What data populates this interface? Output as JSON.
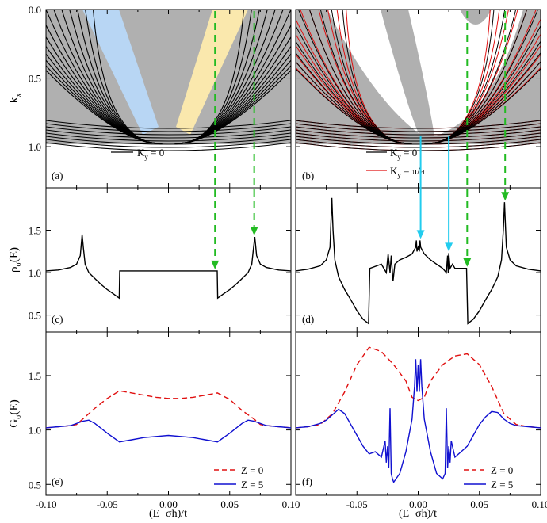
{
  "chart_data": [
    {
      "panel": "a",
      "type": "line",
      "panel_label": "(a)",
      "ylabel": "k",
      "ylabel_sub": "x",
      "ylim": [
        1.3,
        0.0
      ],
      "yticks": [
        "0.0",
        "0.5",
        "1.0"
      ],
      "xlim": [
        -0.1,
        0.1
      ],
      "shaded_regions": [
        {
          "color": "#b0b0b0",
          "meaning": "continuum"
        },
        {
          "color": "#b8d6f4",
          "x": [
            -0.07,
            -0.04
          ]
        },
        {
          "color": "#fae8ad",
          "x": [
            0.04,
            0.07
          ]
        }
      ],
      "series": [
        {
          "legend": "K",
          "legend_sub": "y",
          "legend_tail": " = 0",
          "color": "#000000"
        }
      ]
    },
    {
      "panel": "b",
      "type": "line",
      "panel_label": "(b)",
      "ylim": [
        1.3,
        0.0
      ],
      "xlim": [
        -0.1,
        0.1
      ],
      "series": [
        {
          "legend": "K",
          "legend_sub": "y",
          "legend_tail": " = 0",
          "color": "#000000"
        },
        {
          "legend": "K",
          "legend_sub": "y",
          "legend_tail": " = π/a",
          "color": "#e01010"
        }
      ]
    },
    {
      "panel": "c",
      "type": "line",
      "panel_label": "(c)",
      "ylabel": "ρ",
      "ylabel_sub": "σ",
      "ylabel_tail": "(E)",
      "ylim": [
        0.3,
        2.0
      ],
      "yticks": [
        "0.5",
        "1.0",
        "1.5"
      ],
      "xlim": [
        -0.1,
        0.1
      ],
      "x": [
        -0.1,
        -0.09,
        -0.08,
        -0.075,
        -0.072,
        -0.0705,
        -0.0695,
        -0.068,
        -0.065,
        -0.06,
        -0.055,
        -0.05,
        -0.045,
        -0.0402,
        -0.0398,
        -0.02,
        0.0,
        0.02,
        0.0398,
        0.0402,
        0.045,
        0.05,
        0.055,
        0.06,
        0.065,
        0.068,
        0.0695,
        0.0705,
        0.072,
        0.075,
        0.08,
        0.09,
        0.1
      ],
      "values": [
        1.02,
        1.03,
        1.06,
        1.1,
        1.2,
        1.45,
        1.3,
        1.1,
        1.0,
        0.93,
        0.86,
        0.8,
        0.75,
        0.7,
        1.02,
        1.02,
        1.02,
        1.02,
        1.02,
        0.7,
        0.75,
        0.8,
        0.86,
        0.93,
        1.0,
        1.1,
        1.3,
        1.42,
        1.2,
        1.1,
        1.06,
        1.03,
        1.02
      ],
      "color": "#000000"
    },
    {
      "panel": "d",
      "type": "line",
      "panel_label": "(d)",
      "ylim": [
        0.3,
        2.0
      ],
      "xlim": [
        -0.1,
        0.1
      ],
      "x": [
        -0.1,
        -0.09,
        -0.08,
        -0.075,
        -0.072,
        -0.0705,
        -0.0695,
        -0.068,
        -0.065,
        -0.06,
        -0.055,
        -0.05,
        -0.045,
        -0.0405,
        -0.0395,
        -0.03,
        -0.026,
        -0.0245,
        -0.023,
        -0.022,
        -0.0205,
        -0.019,
        -0.015,
        -0.01,
        -0.005,
        -0.002,
        -0.0015,
        -0.001,
        0.0,
        0.001,
        0.0015,
        0.002,
        0.005,
        0.01,
        0.015,
        0.02,
        0.023,
        0.024,
        0.0245,
        0.025,
        0.026,
        0.028,
        0.03,
        0.035,
        0.0395,
        0.0405,
        0.045,
        0.05,
        0.055,
        0.06,
        0.065,
        0.068,
        0.0695,
        0.0705,
        0.072,
        0.075,
        0.08,
        0.09,
        0.1
      ],
      "values": [
        1.02,
        1.04,
        1.08,
        1.15,
        1.3,
        1.88,
        1.5,
        1.15,
        0.95,
        0.8,
        0.68,
        0.55,
        0.45,
        0.4,
        1.05,
        1.1,
        1.0,
        1.22,
        1.0,
        1.2,
        0.9,
        1.1,
        1.15,
        1.18,
        1.22,
        1.3,
        1.38,
        1.25,
        1.3,
        1.25,
        1.38,
        1.3,
        1.22,
        1.15,
        1.1,
        1.05,
        1.0,
        1.2,
        1.0,
        1.23,
        1.05,
        1.1,
        1.05,
        1.05,
        1.05,
        0.4,
        0.45,
        0.55,
        0.68,
        0.8,
        0.95,
        1.15,
        1.5,
        1.83,
        1.3,
        1.15,
        1.08,
        1.04,
        1.02
      ],
      "color": "#000000"
    },
    {
      "panel": "e",
      "type": "line",
      "panel_label": "(e)",
      "ylabel": "G",
      "ylabel_sub": "σ",
      "ylabel_tail": "(E)",
      "ylim": [
        0.4,
        1.9
      ],
      "yticks": [
        "0.5",
        "1.0",
        "1.5"
      ],
      "xlim": [
        -0.1,
        0.1
      ],
      "xticks": [
        "-0.10",
        "-0.05",
        "0.00",
        "0.05",
        "0.10"
      ],
      "xlabel": "(E−σh)/t",
      "series": [
        {
          "name": "Z = 0",
          "color": "#e01010",
          "dash": true,
          "x": [
            -0.1,
            -0.09,
            -0.08,
            -0.075,
            -0.07,
            -0.06,
            -0.05,
            -0.04,
            -0.03,
            -0.02,
            -0.01,
            0.0,
            0.01,
            0.02,
            0.03,
            0.04,
            0.05,
            0.06,
            0.07,
            0.075,
            0.08,
            0.09,
            0.1
          ],
          "values": [
            1.02,
            1.03,
            1.04,
            1.05,
            1.1,
            1.2,
            1.29,
            1.36,
            1.34,
            1.32,
            1.3,
            1.29,
            1.29,
            1.3,
            1.32,
            1.34,
            1.28,
            1.18,
            1.1,
            1.05,
            1.04,
            1.03,
            1.02
          ]
        },
        {
          "name": "Z = 5",
          "color": "#1010d0",
          "dash": false,
          "x": [
            -0.1,
            -0.09,
            -0.08,
            -0.075,
            -0.07,
            -0.065,
            -0.06,
            -0.05,
            -0.04,
            -0.03,
            -0.02,
            -0.01,
            0.0,
            0.01,
            0.02,
            0.03,
            0.04,
            0.05,
            0.06,
            0.065,
            0.07,
            0.075,
            0.08,
            0.09,
            0.1
          ],
          "values": [
            1.02,
            1.03,
            1.04,
            1.06,
            1.08,
            1.09,
            1.06,
            0.97,
            0.89,
            0.91,
            0.93,
            0.94,
            0.95,
            0.94,
            0.93,
            0.91,
            0.89,
            0.97,
            1.06,
            1.09,
            1.08,
            1.06,
            1.04,
            1.03,
            1.02
          ]
        }
      ]
    },
    {
      "panel": "f",
      "type": "line",
      "panel_label": "(f)",
      "ylim": [
        0.4,
        1.9
      ],
      "xlim": [
        -0.1,
        0.1
      ],
      "xticks": [
        "-0.05",
        "0.00",
        "0.05",
        "0.10"
      ],
      "xlabel": "(E−σh)/t",
      "series": [
        {
          "name": "Z = 0",
          "color": "#e01010",
          "dash": true,
          "x": [
            -0.1,
            -0.09,
            -0.08,
            -0.07,
            -0.06,
            -0.05,
            -0.04,
            -0.03,
            -0.02,
            -0.01,
            -0.005,
            0.0,
            0.005,
            0.01,
            0.02,
            0.03,
            0.04,
            0.05,
            0.06,
            0.07,
            0.08,
            0.09,
            0.1
          ],
          "values": [
            1.02,
            1.03,
            1.05,
            1.15,
            1.35,
            1.6,
            1.76,
            1.72,
            1.6,
            1.45,
            1.3,
            1.27,
            1.3,
            1.45,
            1.6,
            1.68,
            1.7,
            1.6,
            1.4,
            1.15,
            1.05,
            1.03,
            1.02
          ]
        },
        {
          "name": "Z = 5",
          "color": "#1010d0",
          "dash": false,
          "x": [
            -0.1,
            -0.09,
            -0.08,
            -0.075,
            -0.07,
            -0.065,
            -0.06,
            -0.055,
            -0.05,
            -0.045,
            -0.04,
            -0.035,
            -0.03,
            -0.027,
            -0.026,
            -0.025,
            -0.024,
            -0.023,
            -0.022,
            -0.021,
            -0.02,
            -0.015,
            -0.01,
            -0.005,
            -0.003,
            -0.002,
            -0.001,
            0.0,
            0.001,
            0.002,
            0.003,
            0.005,
            0.01,
            0.015,
            0.02,
            0.022,
            0.023,
            0.024,
            0.025,
            0.026,
            0.027,
            0.03,
            0.035,
            0.04,
            0.045,
            0.05,
            0.055,
            0.06,
            0.065,
            0.07,
            0.075,
            0.08,
            0.09,
            0.1
          ],
          "values": [
            1.02,
            1.03,
            1.06,
            1.09,
            1.14,
            1.19,
            1.15,
            1.05,
            0.95,
            0.85,
            0.78,
            0.8,
            0.75,
            0.9,
            0.7,
            0.85,
            0.65,
            1.2,
            0.6,
            0.55,
            0.52,
            0.6,
            0.8,
            1.1,
            1.4,
            1.65,
            1.35,
            1.6,
            1.35,
            1.65,
            1.4,
            1.1,
            0.8,
            0.6,
            0.55,
            0.6,
            1.2,
            0.65,
            0.85,
            0.7,
            0.9,
            0.75,
            0.8,
            0.85,
            0.95,
            1.05,
            1.12,
            1.17,
            1.16,
            1.1,
            1.06,
            1.04,
            1.03,
            1.02
          ]
        }
      ]
    }
  ],
  "arrows": [
    {
      "color": "#22bb22",
      "style": "dashed",
      "x": 0.038,
      "from": "a",
      "to": "c",
      "to_value": 1.02
    },
    {
      "color": "#22bb22",
      "style": "dashed",
      "x": 0.07,
      "from": "a",
      "to": "c",
      "to_value": 1.42
    },
    {
      "color": "#22bb22",
      "style": "dashed",
      "x": 0.04,
      "from": "b",
      "to": "d",
      "to_value": 1.05
    },
    {
      "color": "#22bb22",
      "style": "dashed",
      "x": 0.071,
      "from": "b",
      "to": "d",
      "to_value": 1.83
    },
    {
      "color": "#22ccee",
      "style": "solid",
      "x": 0.002,
      "from": "b",
      "to": "d",
      "to_value": 1.38
    },
    {
      "color": "#22ccee",
      "style": "solid",
      "x": 0.025,
      "from": "b",
      "to": "d",
      "to_value": 1.23
    }
  ]
}
